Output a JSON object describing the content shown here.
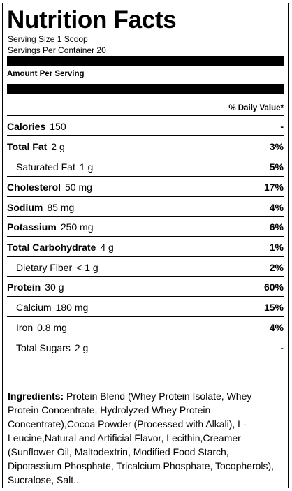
{
  "label": {
    "title": "Nutrition Facts",
    "serving_size": "Serving Size 1 Scoop",
    "servings_per_container": "Servings Per Container 20",
    "amount_per_serving": "Amount Per Serving",
    "daily_value_header": "% Daily Value*",
    "nutrients": [
      {
        "name": "Calories",
        "amount": "150",
        "dv": "-",
        "bold": true,
        "indent": false
      },
      {
        "name": "Total Fat",
        "amount": "2 g",
        "dv": "3%",
        "bold": true,
        "indent": false
      },
      {
        "name": "Saturated Fat",
        "amount": "1 g",
        "dv": "5%",
        "bold": false,
        "indent": true
      },
      {
        "name": "Cholesterol",
        "amount": "50 mg",
        "dv": "17%",
        "bold": true,
        "indent": false
      },
      {
        "name": "Sodium",
        "amount": "85 mg",
        "dv": "4%",
        "bold": true,
        "indent": false
      },
      {
        "name": "Potassium",
        "amount": "250 mg",
        "dv": "6%",
        "bold": true,
        "indent": false
      },
      {
        "name": "Total Carbohydrate",
        "amount": "4 g",
        "dv": "1%",
        "bold": true,
        "indent": false
      },
      {
        "name": "Dietary Fiber",
        "amount": "< 1 g",
        "dv": "2%",
        "bold": false,
        "indent": true
      },
      {
        "name": "Protein",
        "amount": "30 g",
        "dv": "60%",
        "bold": true,
        "indent": false
      },
      {
        "name": "Calcium",
        "amount": "180 mg",
        "dv": "15%",
        "bold": false,
        "indent": true
      },
      {
        "name": "Iron",
        "amount": "0.8 mg",
        "dv": "4%",
        "bold": false,
        "indent": true
      },
      {
        "name": "Total Sugars",
        "amount": "2 g",
        "dv": "-",
        "bold": false,
        "indent": true
      }
    ],
    "ingredients_label": "Ingredients:",
    "ingredients_text": " Protein Blend (Whey Protein Isolate, Whey Protein Concentrate, Hydrolyzed Whey Protein Concentrate),Cocoa Powder (Processed with Alkali), L-Leucine,Natural and Artificial Flavor, Lecithin,Creamer (Sunflower Oil, Maltodextrin, Modified Food Starch, Dipotassium Phosphate, Tricalcium Phosphate, Tocopherols), Sucralose, Salt.."
  }
}
